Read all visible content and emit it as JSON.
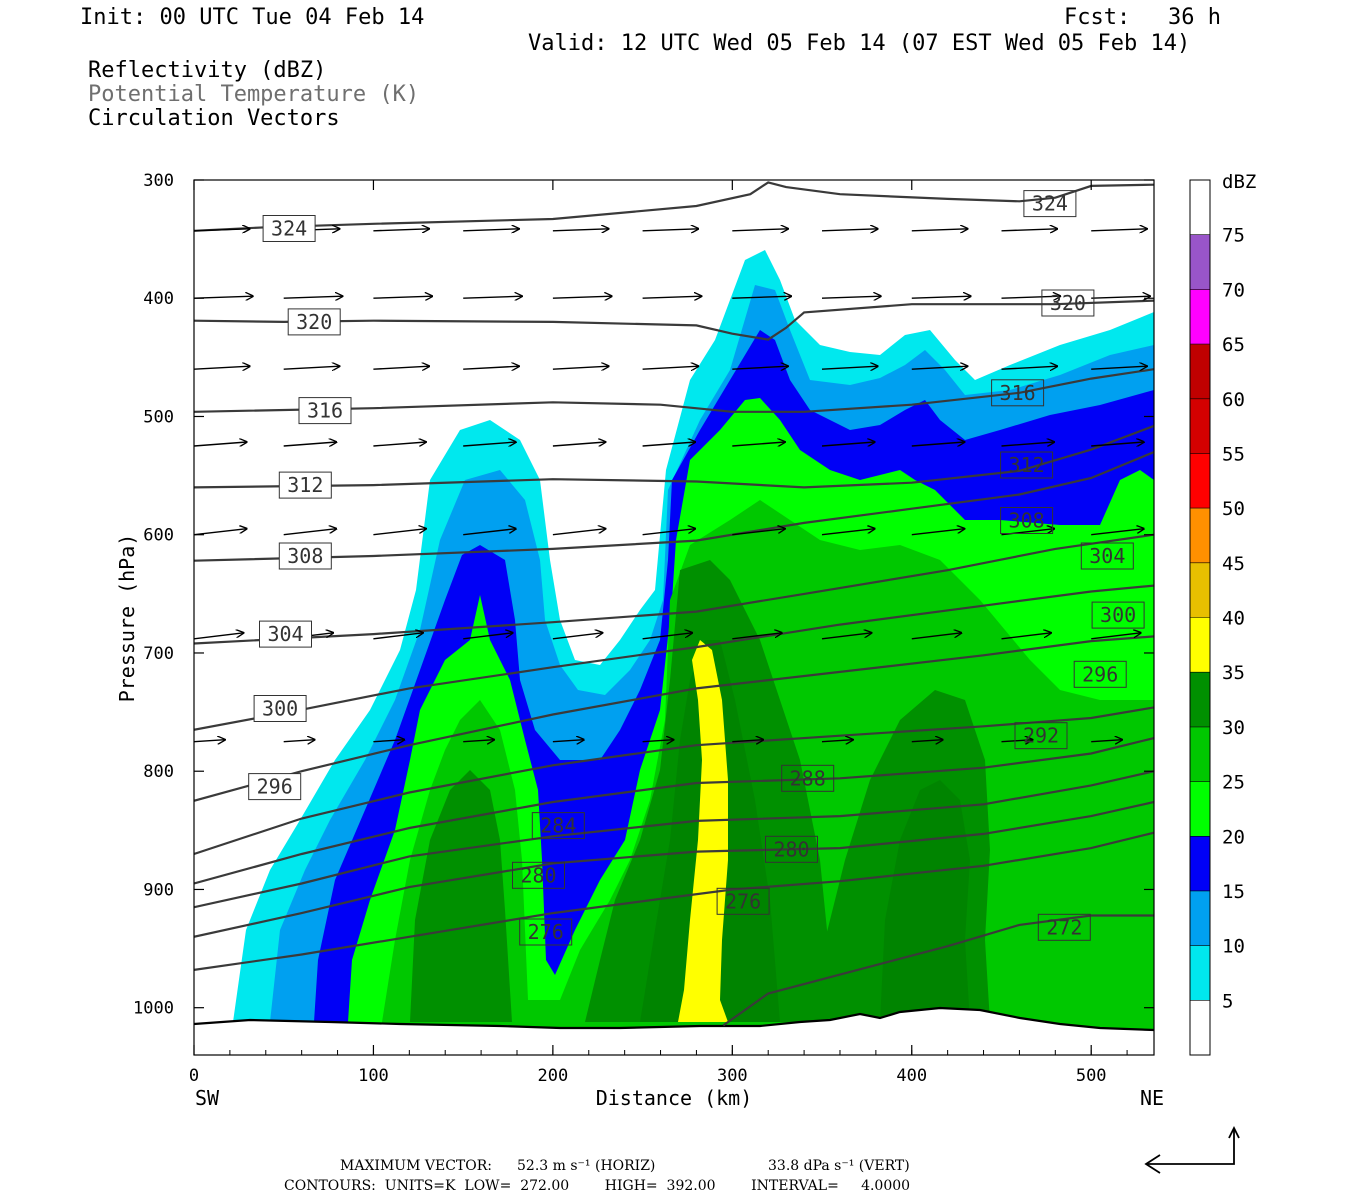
{
  "header": {
    "init": "Init: 00 UTC Tue 04 Feb 14",
    "fcst_label": "Fcst:",
    "fcst_value": "36 h",
    "valid": "Valid: 12 UTC Wed 05 Feb 14 (07 EST Wed 05 Feb 14)"
  },
  "fields": [
    {
      "label": "Reflectivity (dBZ)",
      "color": "#000000"
    },
    {
      "label": "Potential Temperature (K)",
      "color": "#6f6f6f"
    },
    {
      "label": "Circulation Vectors",
      "color": "#000000"
    }
  ],
  "chart_data": {
    "type": "heatmap",
    "description_type": "vertical cross-section",
    "xlabel": "Distance (km)",
    "ylabel": "Pressure (hPa)",
    "xlim": [
      0,
      535
    ],
    "ylim": [
      1040,
      300
    ],
    "x_ticks": [
      "0",
      "100",
      "200",
      "300",
      "400",
      "500"
    ],
    "x_tick_values": [
      0,
      100,
      200,
      300,
      400,
      500
    ],
    "y_ticks": [
      "300",
      "400",
      "500",
      "600",
      "700",
      "800",
      "900",
      "1000"
    ],
    "y_tick_values": [
      300,
      400,
      500,
      600,
      700,
      800,
      900,
      1000
    ],
    "left_end": "SW",
    "right_end": "NE",
    "colorbar": {
      "unit": "dBZ",
      "levels": [
        "5",
        "10",
        "15",
        "20",
        "25",
        "30",
        "35",
        "40",
        "45",
        "50",
        "55",
        "60",
        "65",
        "70",
        "75"
      ],
      "colors": [
        "#ffffff",
        "#00e8ee",
        "#00a0f0",
        "#0000f6",
        "#00ff00",
        "#00c800",
        "#009000",
        "#ffff00",
        "#e8c000",
        "#ff9000",
        "#ff0000",
        "#d40000",
        "#c00000",
        "#ff00ff",
        "#9955c9",
        "#ffffff"
      ]
    },
    "theta_contours": [
      {
        "label": "324",
        "points": [
          [
            0,
            343
          ],
          [
            40,
            340
          ],
          [
            100,
            337
          ],
          [
            200,
            333
          ],
          [
            280,
            322
          ],
          [
            310,
            312
          ],
          [
            320,
            302
          ],
          [
            330,
            306
          ],
          [
            360,
            312
          ],
          [
            420,
            316
          ],
          [
            460,
            318
          ],
          [
            480,
            315
          ],
          [
            500,
            305
          ],
          [
            535,
            304
          ]
        ]
      },
      {
        "label": "320",
        "points": [
          [
            0,
            419
          ],
          [
            50,
            420
          ],
          [
            100,
            419
          ],
          [
            200,
            420
          ],
          [
            280,
            423
          ],
          [
            300,
            430
          ],
          [
            320,
            435
          ],
          [
            330,
            425
          ],
          [
            340,
            412
          ],
          [
            400,
            405
          ],
          [
            480,
            405
          ],
          [
            535,
            402
          ]
        ]
      },
      {
        "label": "316",
        "points": [
          [
            0,
            496
          ],
          [
            100,
            493
          ],
          [
            200,
            488
          ],
          [
            260,
            490
          ],
          [
            300,
            496
          ],
          [
            340,
            496
          ],
          [
            400,
            490
          ],
          [
            460,
            480
          ],
          [
            500,
            468
          ],
          [
            535,
            460
          ]
        ]
      },
      {
        "label": "312",
        "points": [
          [
            0,
            560
          ],
          [
            100,
            558
          ],
          [
            200,
            553
          ],
          [
            280,
            555
          ],
          [
            340,
            560
          ],
          [
            400,
            556
          ],
          [
            460,
            546
          ],
          [
            500,
            528
          ],
          [
            535,
            508
          ]
        ]
      },
      {
        "label": "308",
        "points": [
          [
            0,
            622
          ],
          [
            100,
            618
          ],
          [
            200,
            612
          ],
          [
            280,
            605
          ],
          [
            340,
            590
          ],
          [
            400,
            578
          ],
          [
            460,
            566
          ],
          [
            500,
            552
          ],
          [
            535,
            530
          ]
        ]
      },
      {
        "label": "304",
        "points": [
          [
            0,
            692
          ],
          [
            100,
            684
          ],
          [
            200,
            674
          ],
          [
            280,
            665
          ],
          [
            340,
            650
          ],
          [
            420,
            630
          ],
          [
            480,
            612
          ],
          [
            535,
            600
          ]
        ]
      },
      {
        "label": "300",
        "points": [
          [
            0,
            765
          ],
          [
            60,
            748
          ],
          [
            120,
            730
          ],
          [
            200,
            712
          ],
          [
            280,
            695
          ],
          [
            360,
            676
          ],
          [
            440,
            660
          ],
          [
            500,
            648
          ],
          [
            535,
            643
          ]
        ]
      },
      {
        "label": "296",
        "points": [
          [
            0,
            825
          ],
          [
            60,
            800
          ],
          [
            120,
            778
          ],
          [
            200,
            752
          ],
          [
            280,
            730
          ],
          [
            360,
            716
          ],
          [
            440,
            702
          ],
          [
            500,
            690
          ],
          [
            535,
            686
          ]
        ]
      },
      {
        "label": "292",
        "points": [
          [
            0,
            870
          ],
          [
            60,
            840
          ],
          [
            120,
            818
          ],
          [
            200,
            795
          ],
          [
            280,
            778
          ],
          [
            360,
            770
          ],
          [
            440,
            762
          ],
          [
            500,
            755
          ],
          [
            535,
            746
          ]
        ]
      },
      {
        "label": "288",
        "points": [
          [
            0,
            895
          ],
          [
            60,
            870
          ],
          [
            120,
            848
          ],
          [
            200,
            826
          ],
          [
            280,
            810
          ],
          [
            360,
            806
          ],
          [
            440,
            797
          ],
          [
            500,
            785
          ],
          [
            535,
            772
          ]
        ]
      },
      {
        "label": "284",
        "points": [
          [
            0,
            915
          ],
          [
            60,
            895
          ],
          [
            120,
            872
          ],
          [
            200,
            855
          ],
          [
            280,
            842
          ],
          [
            360,
            838
          ],
          [
            440,
            828
          ],
          [
            500,
            812
          ],
          [
            535,
            800
          ]
        ]
      },
      {
        "label": "280",
        "points": [
          [
            0,
            940
          ],
          [
            60,
            920
          ],
          [
            120,
            898
          ],
          [
            200,
            878
          ],
          [
            280,
            868
          ],
          [
            360,
            865
          ],
          [
            440,
            853
          ],
          [
            500,
            838
          ],
          [
            535,
            826
          ]
        ]
      },
      {
        "label": "276",
        "points": [
          [
            0,
            968
          ],
          [
            60,
            955
          ],
          [
            120,
            940
          ],
          [
            200,
            920
          ],
          [
            260,
            908
          ],
          [
            300,
            900
          ],
          [
            360,
            893
          ],
          [
            440,
            880
          ],
          [
            500,
            865
          ],
          [
            535,
            852
          ]
        ]
      },
      {
        "label": "272",
        "points": [
          [
            295,
            1015
          ],
          [
            320,
            988
          ],
          [
            360,
            972
          ],
          [
            420,
            948
          ],
          [
            460,
            930
          ],
          [
            500,
            922
          ],
          [
            535,
            922
          ]
        ]
      }
    ],
    "contour_labels": [
      {
        "text": "324",
        "x": 53,
        "p": 341
      },
      {
        "text": "324",
        "x": 477,
        "p": 320
      },
      {
        "text": "320",
        "x": 67,
        "p": 420
      },
      {
        "text": "320",
        "x": 487,
        "p": 404
      },
      {
        "text": "316",
        "x": 73,
        "p": 495
      },
      {
        "text": "316",
        "x": 459,
        "p": 480
      },
      {
        "text": "312",
        "x": 62,
        "p": 558
      },
      {
        "text": "312",
        "x": 464,
        "p": 541
      },
      {
        "text": "308",
        "x": 62,
        "p": 618
      },
      {
        "text": "308",
        "x": 464,
        "p": 588
      },
      {
        "text": "304",
        "x": 51,
        "p": 684
      },
      {
        "text": "304",
        "x": 509,
        "p": 618
      },
      {
        "text": "300",
        "x": 48,
        "p": 747
      },
      {
        "text": "300",
        "x": 515,
        "p": 668
      },
      {
        "text": "296",
        "x": 45,
        "p": 813
      },
      {
        "text": "296",
        "x": 505,
        "p": 718
      },
      {
        "text": "292",
        "x": 472,
        "p": 770
      },
      {
        "text": "288",
        "x": 342,
        "p": 806
      },
      {
        "text": "284",
        "x": 203,
        "p": 846
      },
      {
        "text": "280",
        "x": 192,
        "p": 888
      },
      {
        "text": "280",
        "x": 333,
        "p": 866
      },
      {
        "text": "276",
        "x": 196,
        "p": 936
      },
      {
        "text": "276",
        "x": 306,
        "p": 910
      },
      {
        "text": "272",
        "x": 485,
        "p": 932
      }
    ],
    "vector_rows": [
      {
        "p": 343,
        "dx": 36,
        "dy": -2
      },
      {
        "p": 400,
        "dx": 38,
        "dy": -2
      },
      {
        "p": 460,
        "dx": 36,
        "dy": -3
      },
      {
        "p": 525,
        "dx": 34,
        "dy": -4
      },
      {
        "p": 600,
        "dx": 34,
        "dy": -6
      },
      {
        "p": 688,
        "dx": 32,
        "dy": -6
      },
      {
        "p": 775,
        "dx": 20,
        "dy": -2
      }
    ]
  },
  "footer": {
    "max_vector_label": "MAXIMUM VECTOR:",
    "max_vector_horiz": "52.3 m s⁻¹ (HORIZ)",
    "max_vector_vert": "33.8 dPa s⁻¹ (VERT)",
    "contours": "CONTOURS:  UNITS=K  LOW=  272.00        HIGH=  392.00        INTERVAL=     4.0000"
  }
}
